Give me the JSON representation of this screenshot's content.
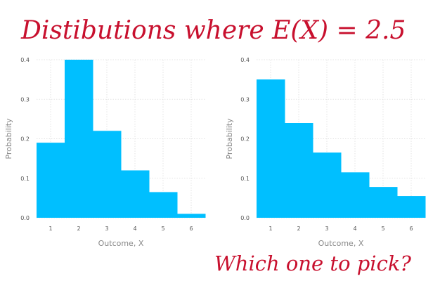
{
  "title": "Distibutions where E(X) = 2.5",
  "caption": "Which one to pick?",
  "bar_color": "#00bfff",
  "text_color": "#c8102e",
  "chart_data": [
    {
      "type": "bar",
      "categories": [
        "1",
        "2",
        "3",
        "4",
        "5",
        "6"
      ],
      "values": [
        0.19,
        0.4,
        0.22,
        0.12,
        0.065,
        0.01
      ],
      "xlabel": "Outcome, X",
      "ylabel": "Probability",
      "ylim": [
        0,
        0.4
      ],
      "yticks": [
        "0.0",
        "0.1",
        "0.2",
        "0.3",
        "0.4"
      ],
      "grid": true
    },
    {
      "type": "bar",
      "categories": [
        "1",
        "2",
        "3",
        "4",
        "5",
        "6"
      ],
      "values": [
        0.35,
        0.24,
        0.165,
        0.115,
        0.078,
        0.055
      ],
      "xlabel": "Outcome, X",
      "ylabel": "Probability",
      "ylim": [
        0,
        0.4
      ],
      "yticks": [
        "0.0",
        "0.1",
        "0.2",
        "0.3",
        "0.4"
      ],
      "grid": true
    }
  ]
}
